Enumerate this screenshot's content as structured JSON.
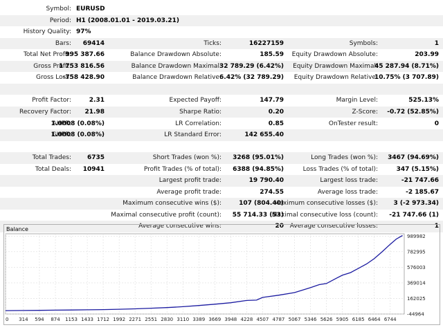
{
  "header": {
    "symbol": {
      "label": "Symbol:",
      "value": "EURUSD"
    },
    "period": {
      "label": "Period:",
      "value": "H1 (2008.01.01 - 2019.03.21)"
    },
    "history_quality": {
      "label": "History Quality:",
      "value": "97%"
    }
  },
  "stats_rows": [
    [
      {
        "label": "Bars:",
        "value": "69414"
      },
      {
        "label": "Ticks:",
        "value": "16227159"
      },
      {
        "label": "Symbols:",
        "value": "1"
      }
    ],
    [
      {
        "label": "Total Net Profit:",
        "value": "995 387.66"
      },
      {
        "label": "Balance Drawdown Absolute:",
        "value": "185.59"
      },
      {
        "label": "Equity Drawdown Absolute:",
        "value": "203.99"
      }
    ],
    [
      {
        "label": "Gross Profit:",
        "value": "1 753 816.56"
      },
      {
        "label": "Balance Drawdown Maximal:",
        "value": "32 789.29 (6.42%)"
      },
      {
        "label": "Equity Drawdown Maximal:",
        "value": "45 287.94 (8.71%)"
      }
    ],
    [
      {
        "label": "Gross Loss:",
        "value": "-758 428.90"
      },
      {
        "label": "Balance Drawdown Relative:",
        "value": "6.42% (32 789.29)"
      },
      {
        "label": "Equity Drawdown Relative:",
        "value": "10.75% (3 707.89)"
      }
    ],
    [],
    [
      {
        "label": "Profit Factor:",
        "value": "2.31"
      },
      {
        "label": "Expected Payoff:",
        "value": "147.79"
      },
      {
        "label": "Margin Level:",
        "value": "525.13%"
      }
    ],
    [
      {
        "label": "Recovery Factor:",
        "value": "21.98"
      },
      {
        "label": "Sharpe Ratio:",
        "value": "0.20"
      },
      {
        "label": "Z-Score:",
        "value": "-0.72 (52.85%)"
      }
    ],
    [
      {
        "label": "AHPR:",
        "value": "1.0008 (0.08%)"
      },
      {
        "label": "LR Correlation:",
        "value": "0.85"
      },
      {
        "label": "OnTester result:",
        "value": "0"
      }
    ],
    [
      {
        "label": "GHPR:",
        "value": "1.0008 (0.08%)"
      },
      {
        "label": "LR Standard Error:",
        "value": "142 655.40"
      },
      null
    ],
    [],
    [
      {
        "label": "Total Trades:",
        "value": "6735"
      },
      {
        "label": "Short Trades (won %):",
        "value": "3268 (95.01%)"
      },
      {
        "label": "Long Trades (won %):",
        "value": "3467 (94.69%)"
      }
    ],
    [
      {
        "label": "Total Deals:",
        "value": "10941"
      },
      {
        "label": "Profit Trades (% of total):",
        "value": "6388 (94.85%)"
      },
      {
        "label": "Loss Trades (% of total):",
        "value": "347 (5.15%)"
      }
    ],
    [
      null,
      {
        "label": "Largest profit trade:",
        "value": "19 790.40"
      },
      {
        "label": "Largest loss trade:",
        "value": "-21 747.66"
      }
    ],
    [
      null,
      {
        "label": "Average profit trade:",
        "value": "274.55"
      },
      {
        "label": "Average loss trade:",
        "value": "-2 185.67"
      }
    ],
    [
      null,
      {
        "label": "Maximum consecutive wins ($):",
        "value": "107 (804.40)"
      },
      {
        "label": "Maximum consecutive losses ($):",
        "value": "3 (-2 973.34)"
      }
    ],
    [
      null,
      {
        "label": "Maximal consecutive profit (count):",
        "value": "55 714.33 (53)"
      },
      {
        "label": "Maximal consecutive loss (count):",
        "value": "-21 747.66 (1)"
      }
    ],
    [
      null,
      {
        "label": "Average consecutive wins:",
        "value": "20"
      },
      {
        "label": "Average consecutive losses:",
        "value": "1"
      }
    ]
  ],
  "chart_data": {
    "type": "line",
    "title": "Balance",
    "xlabel": "",
    "ylabel": "",
    "x_ticks": [
      0,
      314,
      594,
      874,
      1153,
      1433,
      1712,
      1992,
      2271,
      2551,
      2830,
      3110,
      3389,
      3669,
      3948,
      4228,
      4507,
      4787,
      5067,
      5346,
      5626,
      5905,
      6185,
      6464,
      6744
    ],
    "y_ticks": [
      -44964,
      162025,
      369014,
      576003,
      782995,
      989982
    ],
    "xlim": [
      0,
      6990
    ],
    "ylim": [
      -44964,
      1020000
    ],
    "grid": true,
    "line_color": "#1a1aa0",
    "series": [
      {
        "values": [
          {
            "x": 0,
            "y": 0
          },
          {
            "x": 314,
            "y": 2000
          },
          {
            "x": 594,
            "y": 4000
          },
          {
            "x": 874,
            "y": 6000
          },
          {
            "x": 1153,
            "y": 8000
          },
          {
            "x": 1433,
            "y": 11000
          },
          {
            "x": 1712,
            "y": 14000
          },
          {
            "x": 1992,
            "y": 18000
          },
          {
            "x": 2271,
            "y": 24000
          },
          {
            "x": 2551,
            "y": 32000
          },
          {
            "x": 2830,
            "y": 40000
          },
          {
            "x": 3110,
            "y": 52000
          },
          {
            "x": 3389,
            "y": 68000
          },
          {
            "x": 3669,
            "y": 85000
          },
          {
            "x": 3948,
            "y": 105000
          },
          {
            "x": 4228,
            "y": 135000
          },
          {
            "x": 4400,
            "y": 140000
          },
          {
            "x": 4507,
            "y": 175000
          },
          {
            "x": 4787,
            "y": 205000
          },
          {
            "x": 5067,
            "y": 240000
          },
          {
            "x": 5346,
            "y": 305000
          },
          {
            "x": 5500,
            "y": 345000
          },
          {
            "x": 5626,
            "y": 360000
          },
          {
            "x": 5800,
            "y": 430000
          },
          {
            "x": 5905,
            "y": 470000
          },
          {
            "x": 6050,
            "y": 505000
          },
          {
            "x": 6185,
            "y": 560000
          },
          {
            "x": 6330,
            "y": 620000
          },
          {
            "x": 6464,
            "y": 690000
          },
          {
            "x": 6600,
            "y": 780000
          },
          {
            "x": 6744,
            "y": 880000
          },
          {
            "x": 6850,
            "y": 950000
          },
          {
            "x": 6960,
            "y": 997000
          }
        ]
      }
    ]
  }
}
